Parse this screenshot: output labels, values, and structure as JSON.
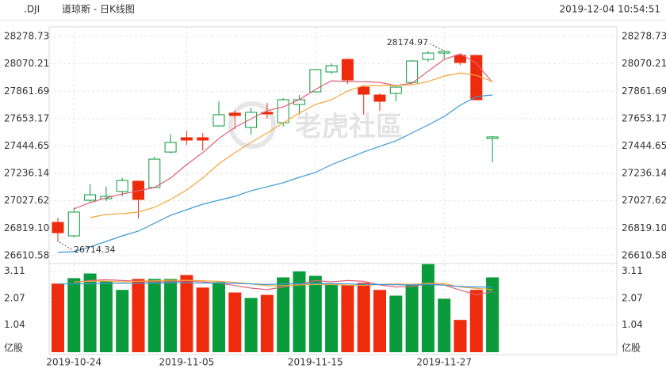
{
  "chart_data": {
    "type": "candlestick",
    "symbol": ".DJI",
    "title": "道琼斯 - 日K线图",
    "timestamp": "2019-12-04 10:54:51",
    "watermark": "老虎社區",
    "up_color": "#0a9b3c",
    "down_color": "#ee2b0c",
    "grid": true,
    "categories": [
      null,
      "2019-10-24",
      null,
      null,
      null,
      null,
      null,
      null,
      "2019-11-05",
      null,
      null,
      null,
      null,
      null,
      null,
      null,
      "2019-11-15",
      null,
      null,
      null,
      null,
      null,
      null,
      null,
      "2019-11-27",
      null,
      null,
      null
    ],
    "ylim": [
      26610.58,
      28278.73
    ],
    "yticks": [
      28278.73,
      28070.21,
      27861.69,
      27653.17,
      27444.65,
      27236.14,
      27027.62,
      {
        "value": 26819.1,
        "label": "26819.10"
      },
      26610.58
    ],
    "ohlc": {
      "open": [
        26864,
        26761,
        27032,
        27044,
        27099,
        27177,
        27129,
        27399,
        27508,
        27508,
        27598,
        27695,
        27586,
        27701,
        27622,
        27761,
        27857,
        28008,
        28104,
        27893,
        27833,
        27845,
        27929,
        28104,
        28152,
        28134,
        28134,
        27502
      ],
      "high": [
        26900,
        26978,
        27153,
        27135,
        27201,
        27183,
        27363,
        27532,
        27562,
        27544,
        27785,
        27713,
        27737,
        27773,
        27809,
        27833,
        28032,
        28074,
        28110,
        27905,
        27845,
        27905,
        28098,
        28168,
        28174.97,
        28146,
        28134,
        27520
      ],
      "low": [
        26714.34,
        26749,
        27014,
        27026,
        27062,
        26894,
        27123,
        27388,
        27454,
        27411,
        27592,
        27574,
        27532,
        27652,
        27592,
        27683,
        27851,
        27996,
        27917,
        27683,
        27713,
        27785,
        27917,
        28086,
        28104,
        28062,
        27797,
        27321
      ],
      "close": [
        26785,
        26942,
        27074,
        27062,
        27183,
        27038,
        27345,
        27472,
        27490,
        27490,
        27683,
        27677,
        27701,
        27689,
        27797,
        27797,
        28026,
        28056,
        27947,
        27839,
        27785,
        27893,
        28092,
        28152,
        28164,
        28080,
        27797,
        27514
      ]
    },
    "lines": [
      {
        "color": "#e0607a",
        "values": [
          null,
          26966,
          27014,
          27050,
          27080,
          27104,
          27129,
          27201,
          27303,
          27394,
          27502,
          27586,
          27652,
          27713,
          27743,
          27797,
          27875,
          27941,
          27935,
          27935,
          27929,
          27905,
          27923,
          28014,
          28104,
          28146,
          28074,
          27929
        ]
      },
      {
        "color": "#f5a53a",
        "values": [
          null,
          null,
          26900,
          26924,
          26930,
          26942,
          26978,
          27038,
          27110,
          27201,
          27309,
          27394,
          27472,
          27544,
          27622,
          27695,
          27761,
          27797,
          27863,
          27905,
          27905,
          27905,
          27911,
          27935,
          27977,
          28001,
          27983,
          27935
        ]
      },
      {
        "color": "#3c9ad6",
        "values": [
          26635,
          26641,
          26677,
          26719,
          26761,
          26797,
          26857,
          26918,
          26960,
          27002,
          27032,
          27062,
          27104,
          27135,
          27165,
          27207,
          27243,
          27303,
          27351,
          27399,
          27442,
          27484,
          27544,
          27604,
          27670,
          27755,
          27821,
          27833
        ]
      }
    ],
    "volume": {
      "unit": "亿股",
      "ylim": [
        0,
        3.4
      ],
      "yticks": [
        3.11,
        2.07,
        1.04
      ],
      "values": [
        2.63,
        2.84,
        3.02,
        2.72,
        2.39,
        2.81,
        2.81,
        2.81,
        2.96,
        2.48,
        2.69,
        2.29,
        2.08,
        2.2,
        2.87,
        3.1,
        2.93,
        2.63,
        2.57,
        2.66,
        2.39,
        2.17,
        2.57,
        3.38,
        2.05,
        1.24,
        2.39,
        2.87
      ],
      "lines": [
        {
          "color": "#e0607a",
          "values": [
            null,
            2.68,
            2.75,
            2.78,
            2.75,
            2.72,
            2.7,
            2.7,
            2.74,
            2.7,
            2.65,
            2.56,
            2.46,
            2.4,
            2.5,
            2.62,
            2.75,
            2.7,
            2.75,
            2.72,
            2.58,
            2.5,
            2.52,
            2.62,
            2.58,
            2.38,
            2.2,
            2.33
          ]
        },
        {
          "color": "#f5a53a",
          "values": [
            null,
            2.7,
            2.72,
            2.73,
            2.7,
            2.72,
            2.74,
            2.76,
            2.76,
            2.74,
            2.72,
            2.68,
            2.62,
            2.55,
            2.55,
            2.58,
            2.6,
            2.6,
            2.57,
            2.56,
            2.6,
            2.62,
            2.6,
            2.65,
            2.63,
            2.5,
            2.45,
            2.4
          ]
        },
        {
          "color": "#3c9ad6",
          "values": [
            2.62,
            2.62,
            2.63,
            2.64,
            2.64,
            2.64,
            2.65,
            2.66,
            2.66,
            2.65,
            2.65,
            2.64,
            2.62,
            2.6,
            2.62,
            2.63,
            2.64,
            2.63,
            2.62,
            2.6,
            2.6,
            2.59,
            2.58,
            2.6,
            2.57,
            2.52,
            2.5,
            2.5
          ]
        }
      ]
    }
  }
}
